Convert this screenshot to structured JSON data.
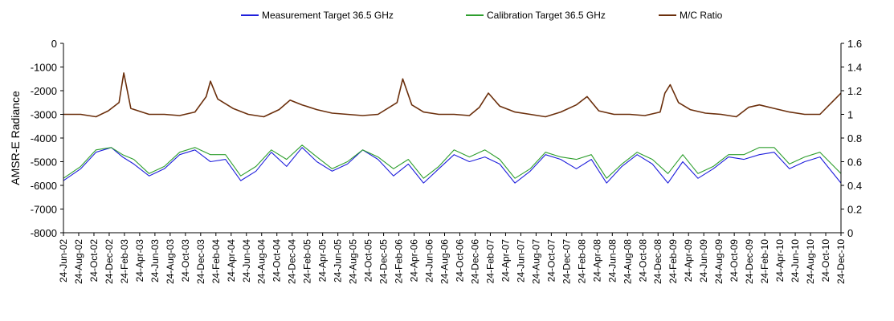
{
  "chart_data": {
    "type": "line",
    "title": "",
    "ylabel": "AMSR-E Radiance",
    "y2label": "",
    "ylim": [
      -8000,
      0
    ],
    "y2lim": [
      0,
      1.6
    ],
    "yticks": [
      "0",
      "-1000",
      "-2000",
      "-3000",
      "-4000",
      "-5000",
      "-6000",
      "-7000",
      "-8000"
    ],
    "y2ticks": [
      "1.6",
      "1.4",
      "1.2",
      "1",
      "0.8",
      "0.6",
      "0.4",
      "0.2",
      "0"
    ],
    "xlim": [
      "2002-06-24",
      "2010-12-24"
    ],
    "x_tick_labels": [
      "24-Jun-02",
      "24-Aug-02",
      "24-Oct-02",
      "24-Dec-02",
      "24-Feb-03",
      "24-Apr-03",
      "24-Jun-03",
      "24-Aug-03",
      "24-Oct-03",
      "24-Dec-03",
      "24-Feb-04",
      "24-Apr-04",
      "24-Jun-04",
      "24-Aug-04",
      "24-Oct-04",
      "24-Dec-04",
      "24-Feb-05",
      "24-Apr-05",
      "24-Jun-05",
      "24-Aug-05",
      "24-Oct-05",
      "24-Dec-05",
      "24-Feb-06",
      "24-Apr-06",
      "24-Jun-06",
      "24-Aug-06",
      "24-Oct-06",
      "24-Dec-06",
      "24-Feb-07",
      "24-Apr-07",
      "24-Jun-07",
      "24-Aug-07",
      "24-Oct-07",
      "24-Dec-07",
      "24-Feb-08",
      "24-Apr-08",
      "24-Jun-08",
      "24-Aug-08",
      "24-Oct-08",
      "24-Dec-08",
      "24-Feb-09",
      "24-Apr-09",
      "24-Jun-09",
      "24-Aug-09",
      "24-Oct-09",
      "24-Dec-09",
      "24-Feb-10",
      "24-Apr-10",
      "24-Jun-10",
      "24-Aug-10",
      "24-Oct-10",
      "24-Dec-10"
    ],
    "grid": false,
    "legend_position": "top",
    "series": [
      {
        "name": "Measurement Target 36.5 GHz",
        "axis": "left",
        "color": "#1f1fdc",
        "x": [
          "2002-06-24",
          "2002-09-01",
          "2002-11-01",
          "2003-01-01",
          "2003-02-15",
          "2003-04-01",
          "2003-06-01",
          "2003-08-01",
          "2003-10-01",
          "2003-12-01",
          "2004-02-01",
          "2004-04-01",
          "2004-06-01",
          "2004-08-01",
          "2004-10-01",
          "2004-12-01",
          "2005-02-01",
          "2005-04-01",
          "2005-06-01",
          "2005-08-01",
          "2005-10-01",
          "2005-12-01",
          "2006-02-01",
          "2006-04-01",
          "2006-06-01",
          "2006-08-01",
          "2006-10-01",
          "2006-12-01",
          "2007-02-01",
          "2007-04-01",
          "2007-06-01",
          "2007-08-01",
          "2007-10-01",
          "2007-12-01",
          "2008-02-01",
          "2008-04-01",
          "2008-06-01",
          "2008-08-01",
          "2008-10-01",
          "2008-12-01",
          "2009-02-01",
          "2009-04-01",
          "2009-06-01",
          "2009-08-01",
          "2009-10-01",
          "2009-12-01",
          "2010-02-01",
          "2010-04-01",
          "2010-06-01",
          "2010-08-01",
          "2010-10-01",
          "2010-12-24"
        ],
        "y": [
          -5800,
          -5300,
          -4600,
          -4400,
          -4800,
          -5100,
          -5600,
          -5300,
          -4700,
          -4500,
          -5000,
          -4900,
          -5800,
          -5400,
          -4600,
          -5200,
          -4400,
          -5000,
          -5400,
          -5100,
          -4500,
          -4900,
          -5600,
          -5100,
          -5900,
          -5300,
          -4700,
          -5000,
          -4800,
          -5100,
          -5900,
          -5400,
          -4700,
          -4900,
          -5300,
          -4900,
          -5900,
          -5200,
          -4700,
          -5100,
          -5900,
          -5000,
          -5700,
          -5300,
          -4800,
          -4900,
          -4700,
          -4600,
          -5300,
          -5000,
          -4800,
          -5900
        ]
      },
      {
        "name": "Calibration Target 36.5 GHz",
        "axis": "left",
        "color": "#2e9e2e",
        "x": [
          "2002-06-24",
          "2002-09-01",
          "2002-11-01",
          "2003-01-01",
          "2003-02-15",
          "2003-04-01",
          "2003-06-01",
          "2003-08-01",
          "2003-10-01",
          "2003-12-01",
          "2004-02-01",
          "2004-04-01",
          "2004-06-01",
          "2004-08-01",
          "2004-10-01",
          "2004-12-01",
          "2005-02-01",
          "2005-04-01",
          "2005-06-01",
          "2005-08-01",
          "2005-10-01",
          "2005-12-01",
          "2006-02-01",
          "2006-04-01",
          "2006-06-01",
          "2006-08-01",
          "2006-10-01",
          "2006-12-01",
          "2007-02-01",
          "2007-04-01",
          "2007-06-01",
          "2007-08-01",
          "2007-10-01",
          "2007-12-01",
          "2008-02-01",
          "2008-04-01",
          "2008-06-01",
          "2008-08-01",
          "2008-10-01",
          "2008-12-01",
          "2009-02-01",
          "2009-04-01",
          "2009-06-01",
          "2009-08-01",
          "2009-10-01",
          "2009-12-01",
          "2010-02-01",
          "2010-04-01",
          "2010-06-01",
          "2010-08-01",
          "2010-10-01",
          "2010-12-24"
        ],
        "y": [
          -5700,
          -5200,
          -4500,
          -4400,
          -4700,
          -4900,
          -5500,
          -5200,
          -4600,
          -4400,
          -4700,
          -4700,
          -5600,
          -5200,
          -4500,
          -4900,
          -4300,
          -4800,
          -5300,
          -5000,
          -4500,
          -4800,
          -5300,
          -4900,
          -5700,
          -5200,
          -4500,
          -4800,
          -4500,
          -4900,
          -5700,
          -5300,
          -4600,
          -4800,
          -4900,
          -4700,
          -5700,
          -5100,
          -4600,
          -4900,
          -5500,
          -4700,
          -5500,
          -5200,
          -4700,
          -4700,
          -4400,
          -4400,
          -5100,
          -4800,
          -4600,
          -5500
        ]
      },
      {
        "name": "M/C Ratio",
        "axis": "right",
        "color": "#6b2f0c",
        "x": [
          "2002-06-24",
          "2002-09-01",
          "2002-11-01",
          "2002-12-20",
          "2003-02-01",
          "2003-02-20",
          "2003-03-20",
          "2003-06-01",
          "2003-08-01",
          "2003-10-01",
          "2003-12-01",
          "2004-01-15",
          "2004-02-01",
          "2004-03-01",
          "2004-05-01",
          "2004-07-01",
          "2004-09-01",
          "2004-11-01",
          "2004-12-15",
          "2005-02-01",
          "2005-04-01",
          "2005-06-01",
          "2005-08-01",
          "2005-10-01",
          "2005-12-01",
          "2006-02-15",
          "2006-03-10",
          "2006-04-15",
          "2006-06-01",
          "2006-08-01",
          "2006-10-01",
          "2006-12-01",
          "2007-01-10",
          "2007-02-15",
          "2007-04-01",
          "2007-06-01",
          "2007-08-01",
          "2007-10-01",
          "2007-12-01",
          "2008-02-01",
          "2008-03-15",
          "2008-05-01",
          "2008-07-01",
          "2008-09-01",
          "2008-11-01",
          "2009-01-01",
          "2009-01-20",
          "2009-02-10",
          "2009-03-15",
          "2009-05-01",
          "2009-07-01",
          "2009-09-01",
          "2009-11-01",
          "2009-12-20",
          "2010-02-01",
          "2010-04-01",
          "2010-06-01",
          "2010-08-01",
          "2010-10-01",
          "2010-12-24"
        ],
        "y": [
          1.0,
          1.0,
          0.98,
          1.03,
          1.1,
          1.35,
          1.05,
          1.0,
          1.0,
          0.99,
          1.02,
          1.15,
          1.28,
          1.13,
          1.05,
          1.0,
          0.98,
          1.04,
          1.12,
          1.08,
          1.04,
          1.01,
          1.0,
          0.99,
          1.0,
          1.1,
          1.3,
          1.08,
          1.02,
          1.0,
          1.0,
          0.99,
          1.06,
          1.18,
          1.07,
          1.02,
          1.0,
          0.98,
          1.02,
          1.08,
          1.15,
          1.03,
          1.0,
          1.0,
          0.99,
          1.02,
          1.18,
          1.25,
          1.1,
          1.04,
          1.01,
          1.0,
          0.98,
          1.06,
          1.08,
          1.05,
          1.02,
          1.0,
          1.0,
          1.18
        ]
      }
    ],
    "legend": [
      {
        "name": "Measurement Target 36.5 GHz",
        "color": "#1f1fdc"
      },
      {
        "name": "Calibration Target 36.5 GHz",
        "color": "#2e9e2e"
      },
      {
        "name": "M/C Ratio",
        "color": "#6b2f0c"
      }
    ]
  }
}
